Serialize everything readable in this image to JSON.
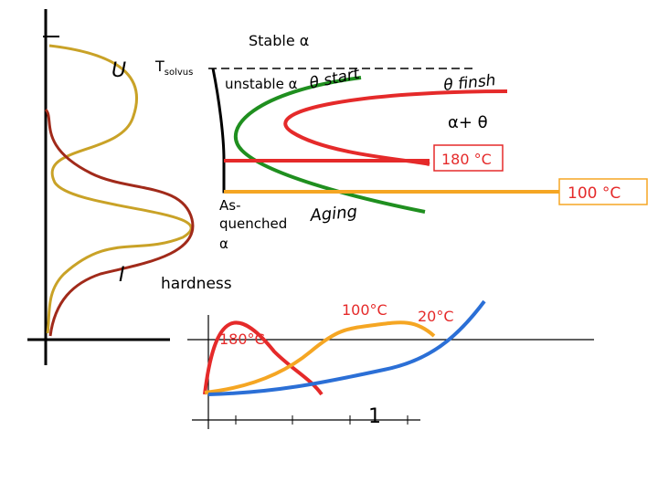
{
  "labels": {
    "stable_alpha": "Stable α",
    "t_solvus_main": "T",
    "t_solvus_sub": "solvus",
    "unstable": "unstable α",
    "theta_start": "θ start",
    "theta_finish": "θ finsh",
    "alpha_theta": "α+ θ",
    "temp_180": "180 °C",
    "temp_100": "100 °C",
    "as_quenched_1": "As-",
    "as_quenched_2": "quenched",
    "as_quenched_3": "α",
    "aging": "Aging",
    "u_label": "U",
    "i_label": "I",
    "hardness": "hardness",
    "hardness_180": "180°C",
    "hardness_100": "100°C",
    "hardness_20": "20°C",
    "tick_1": "1"
  },
  "colors": {
    "axis": "#000000",
    "black_curve": "#000000",
    "green_curve": "#1f8f1f",
    "red_curve": "#e52a2a",
    "orange_curve": "#f5a623",
    "blue_curve": "#2b6fd6",
    "u_curve": "#c9a227",
    "i_curve": "#a12a1a"
  }
}
